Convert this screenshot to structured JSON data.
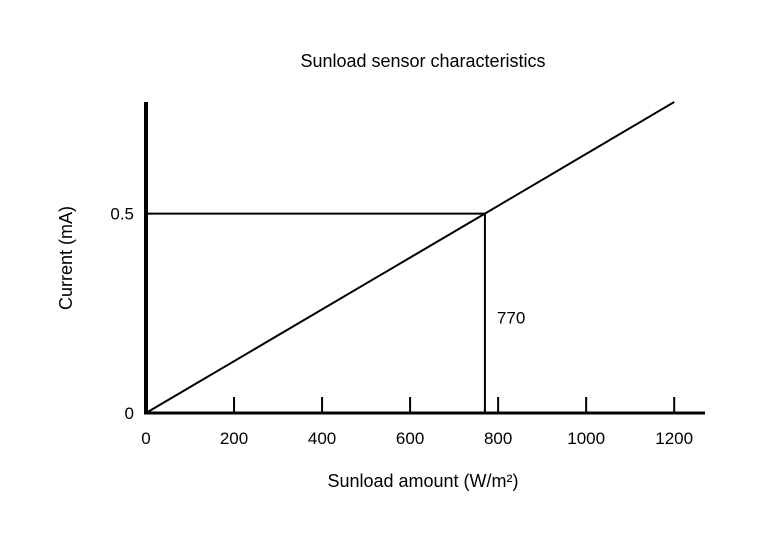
{
  "chart_data": {
    "type": "line",
    "title": "Sunload sensor characteristics",
    "xlabel": "Sunload amount (W/m²)",
    "ylabel": "Current (mA)",
    "xlim": [
      0,
      1270
    ],
    "ylim": [
      0,
      0.78
    ],
    "x_ticks": [
      {
        "value": 0,
        "label": "0"
      },
      {
        "value": 200,
        "label": "200"
      },
      {
        "value": 400,
        "label": "400"
      },
      {
        "value": 600,
        "label": "600"
      },
      {
        "value": 800,
        "label": "800"
      },
      {
        "value": 1000,
        "label": "1000"
      },
      {
        "value": 1200,
        "label": "1200"
      }
    ],
    "y_ticks": [
      {
        "value": 0,
        "label": "0"
      },
      {
        "value": 0.5,
        "label": "0.5"
      }
    ],
    "series": [
      {
        "x": [
          0,
          770,
          1200
        ],
        "y": [
          0,
          0.5,
          0.78
        ]
      }
    ],
    "reference_point": {
      "x": 770,
      "y": 0.5,
      "label": "770"
    },
    "grid": false,
    "legend": "none",
    "colors": {
      "line": "#000000",
      "axis": "#000000"
    }
  }
}
